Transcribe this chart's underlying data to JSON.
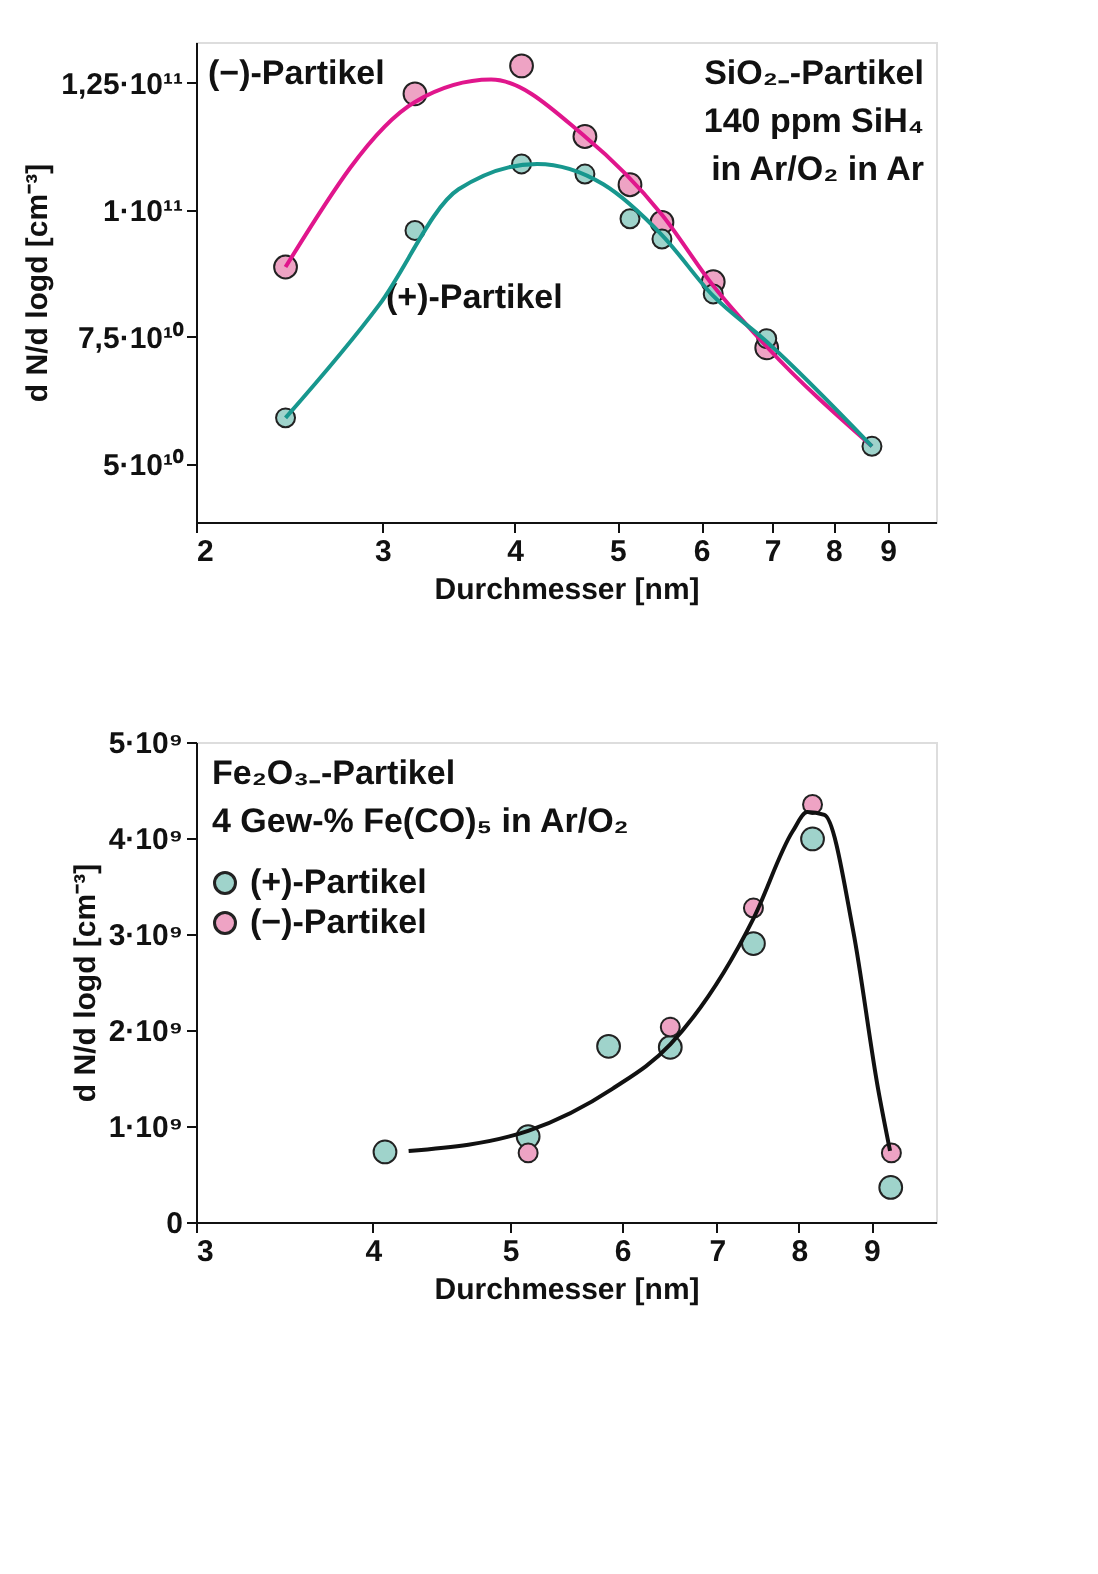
{
  "chart_data": [
    {
      "type": "scatter",
      "xlabel": "Durchmesser [nm]",
      "ylabel": "d N/d logd  [cm⁻³]",
      "log": "x",
      "grid": false,
      "legend": false,
      "marker": "circle",
      "xlim": [
        2,
        10
      ],
      "xticks": [
        2,
        3,
        4,
        5,
        6,
        7,
        8,
        9
      ],
      "ylim": [
        38500000000,
        133000000000
      ],
      "yticks": [
        {
          "value": 50000000000,
          "label": "5·10¹⁰"
        },
        {
          "value": 75000000000,
          "label": "7,5·10¹⁰"
        },
        {
          "value": 100000000000,
          "label": "1·10¹¹"
        },
        {
          "value": 125000000000,
          "label": "1,25·10¹¹"
        }
      ],
      "annotations": [
        "SiO₂₋-Partikel",
        "140 ppm SiH₄",
        "in Ar/O₂ in Ar"
      ],
      "series": [
        {
          "name": "(−)-Partikel",
          "color": "#eea3c4",
          "x": [
            2.43,
            3.22,
            4.06,
            4.66,
            5.14,
            5.51,
            6.16,
            6.92
          ],
          "values": [
            88700000000,
            122800000000,
            128300000000,
            114400000000,
            104900000000,
            97500000000,
            85800000000,
            72800000000
          ]
        },
        {
          "name": "(+)-Partikel",
          "color": "#9fd3cb",
          "x": [
            2.43,
            3.22,
            4.06,
            4.66,
            5.14,
            5.51,
            6.16,
            6.92,
            8.7
          ],
          "values": [
            59000000000,
            95900000000,
            109000000000,
            107000000000,
            98200000000,
            94200000000,
            83400000000,
            74600000000,
            53400000000
          ]
        },
        {
          "type": "line",
          "marker": "none",
          "color": "#e0168c",
          "x": [
            2.43,
            3.22,
            3.8,
            4.66,
            5.51,
            6.16,
            6.92,
            8.7
          ],
          "values": [
            88700000000,
            121200000000,
            125600000000,
            114400000000,
            99000000000,
            85000000000,
            73000000000,
            53400000000
          ]
        },
        {
          "type": "line",
          "marker": "none",
          "color": "#17978e",
          "x": [
            2.43,
            2.98,
            3.54,
            4.2,
            4.85,
            5.51,
            6.16,
            6.92,
            8.7
          ],
          "values": [
            59000000000,
            81300000000,
            104000000000,
            109000000000,
            105000000000,
            95000000000,
            83000000000,
            74000000000,
            53400000000
          ]
        }
      ]
    },
    {
      "type": "scatter",
      "xlabel": "Durchmesser [nm]",
      "ylabel": "d N/d logd  [cm⁻³]",
      "log": "x",
      "grid": false,
      "legend": "top left",
      "marker": "circle",
      "xlim": [
        3,
        10
      ],
      "xticks": [
        3,
        4,
        5,
        6,
        7,
        8,
        9
      ],
      "ylim": [
        0,
        5000000000
      ],
      "yticks": [
        0,
        {
          "value": 1000000000,
          "label": "1·10⁹"
        },
        {
          "value": 2000000000,
          "label": "2·10⁹"
        },
        {
          "value": 3000000000,
          "label": "3·10⁹"
        },
        {
          "value": 4000000000,
          "label": "4·10⁹"
        },
        {
          "value": 5000000000,
          "label": "5·10⁹"
        }
      ],
      "annotations": [
        "Fe₂O₃₋-Partikel",
        "4 Gew-% Fe(CO)₅ in Ar/O₂"
      ],
      "series": [
        {
          "name": "(+)-Partikel",
          "color": "#9fd3cb",
          "x": [
            4.08,
            5.15,
            5.87,
            6.49,
            7.43,
            8.18,
            9.29
          ],
          "values": [
            730000000,
            890000000,
            1830000000,
            1820000000,
            2900000000,
            3990000000,
            360000000
          ]
        },
        {
          "name": "(−)-Partikel",
          "color": "#eea3c4",
          "x": [
            5.15,
            6.49,
            7.43,
            8.18,
            9.3
          ],
          "values": [
            720000000,
            2030000000,
            3270000000,
            4350000000,
            720000000
          ]
        },
        {
          "type": "line",
          "marker": "none",
          "color": "#111111",
          "x": [
            4.24,
            5.15,
            5.91,
            6.49,
            7.43,
            7.92,
            8.11,
            8.34,
            8.74,
            9.1,
            9.28
          ],
          "values": [
            740000000,
            950000000,
            1390000000,
            1850000000,
            3160000000,
            4070000000,
            4270000000,
            4240000000,
            3030000000,
            1390000000,
            740000000
          ]
        }
      ]
    }
  ]
}
